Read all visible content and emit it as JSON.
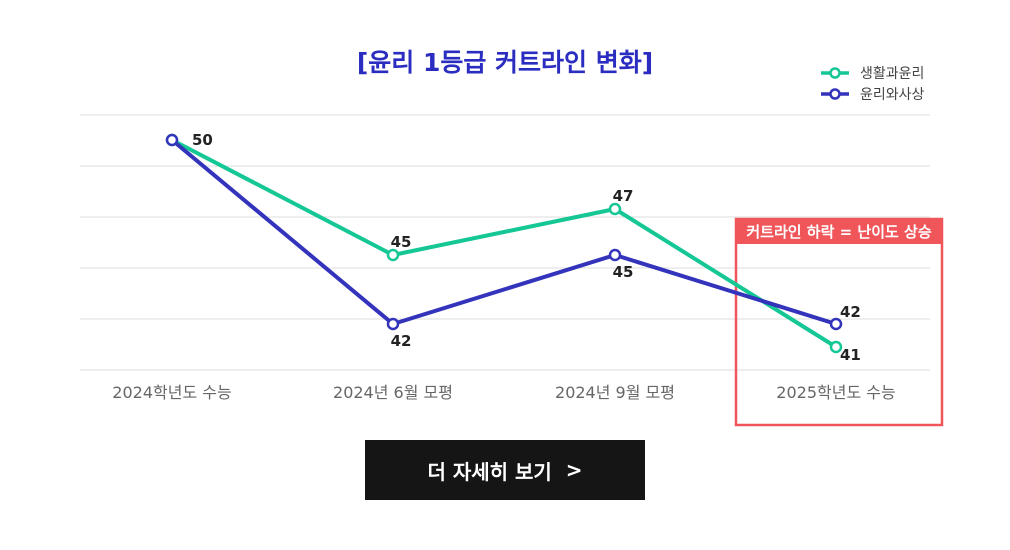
{
  "chart_data": {
    "type": "line",
    "title": "[윤리 1등급 커트라인 변화]",
    "categories": [
      "2024학년도 수능",
      "2024년 6월 모평",
      "2024년 9월 모평",
      "2025학년도 수능"
    ],
    "series": [
      {
        "name": "생활과윤리",
        "values": [
          50,
          45,
          47,
          41
        ],
        "color": "#14c795"
      },
      {
        "name": "윤리와사상",
        "values": [
          50,
          42,
          45,
          42
        ],
        "color": "#3333bb"
      }
    ],
    "ylim": [
      40,
      51
    ],
    "grid": true,
    "legend": "top-right",
    "annotation": {
      "label": "커트라인 하락 = 난이도 상승",
      "category_index": 3,
      "color": "#f0555a"
    }
  },
  "colors": {
    "title": "#2b2dc0",
    "tick_label": "#666666",
    "gridline": "#dddddd"
  },
  "cta": {
    "label": "더 자세히 보기",
    "arrow": ">"
  }
}
